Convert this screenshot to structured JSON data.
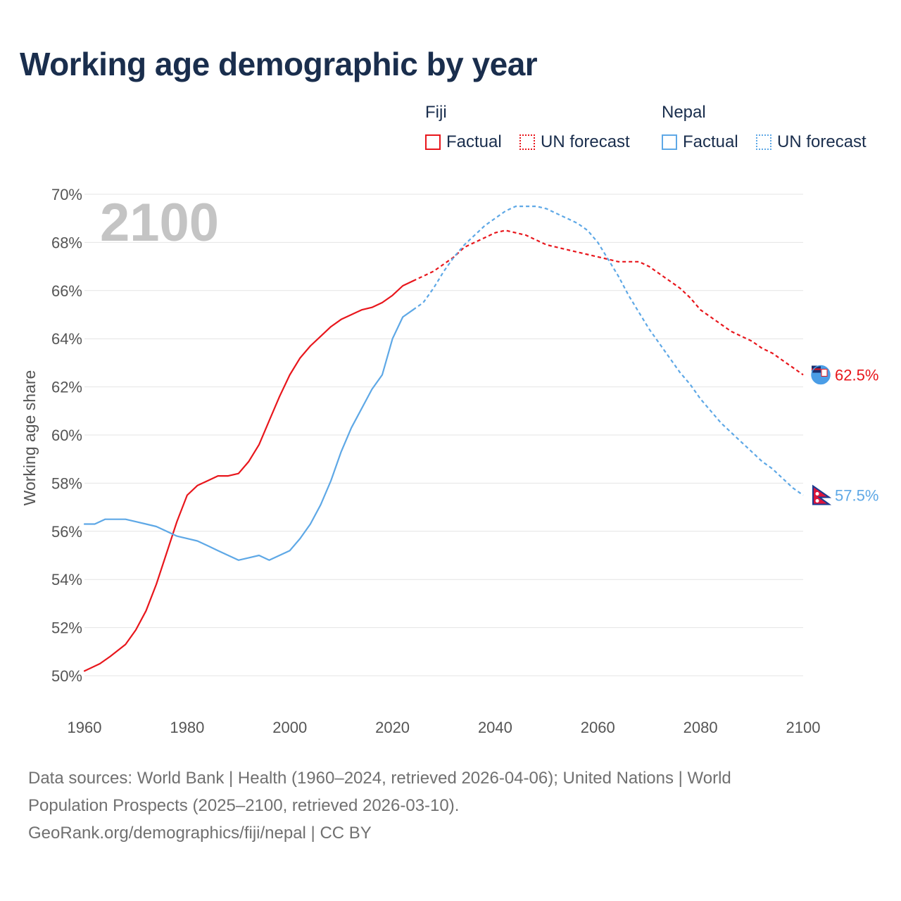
{
  "title": "Working age demographic by year",
  "legend": {
    "groups": [
      {
        "name": "Fiji",
        "factual_label": "Factual",
        "forecast_label": "UN forecast",
        "color": "#e8161c"
      },
      {
        "name": "Nepal",
        "factual_label": "Factual",
        "forecast_label": "UN forecast",
        "color": "#5ea8e6"
      }
    ]
  },
  "footer": {
    "line1": "Data sources: World Bank | Health (1960–2024, retrieved 2026-04-06); United Nations | World",
    "line2": "Population Prospects (2025–2100, retrieved 2026-03-10).",
    "line3": "GeoRank.org/demographics/fiji/nepal | CC BY"
  },
  "chart_data": {
    "type": "line",
    "title": "Working age demographic by year",
    "ylabel": "Working age share",
    "xlabel": "",
    "xlim": [
      1960,
      2100
    ],
    "ylim": [
      50,
      70
    ],
    "x_ticks": [
      1960,
      1980,
      2000,
      2020,
      2040,
      2060,
      2080,
      2100
    ],
    "x_tick_labels": [
      "1960",
      "1980",
      "2000",
      "2020",
      "2040",
      "2060",
      "2080",
      "2100"
    ],
    "y_ticks": [
      50,
      52,
      54,
      56,
      58,
      60,
      62,
      64,
      66,
      68,
      70
    ],
    "y_tick_labels": [
      "50%",
      "52%",
      "54%",
      "56%",
      "58%",
      "60%",
      "62%",
      "64%",
      "66%",
      "68%",
      "70%"
    ],
    "current_year_label": "2100",
    "factual_end_year": 2024,
    "series": [
      {
        "name": "Fiji",
        "color": "#e8161c",
        "end_label": "62.5%",
        "flag_icon": "fiji-flag-icon",
        "points": [
          [
            1960,
            50.2
          ],
          [
            1963,
            50.5
          ],
          [
            1965,
            50.8
          ],
          [
            1968,
            51.3
          ],
          [
            1970,
            51.9
          ],
          [
            1972,
            52.7
          ],
          [
            1974,
            53.8
          ],
          [
            1976,
            55.1
          ],
          [
            1978,
            56.4
          ],
          [
            1980,
            57.5
          ],
          [
            1982,
            57.9
          ],
          [
            1984,
            58.1
          ],
          [
            1986,
            58.3
          ],
          [
            1988,
            58.3
          ],
          [
            1990,
            58.4
          ],
          [
            1992,
            58.9
          ],
          [
            1994,
            59.6
          ],
          [
            1996,
            60.6
          ],
          [
            1998,
            61.6
          ],
          [
            2000,
            62.5
          ],
          [
            2002,
            63.2
          ],
          [
            2004,
            63.7
          ],
          [
            2006,
            64.1
          ],
          [
            2008,
            64.5
          ],
          [
            2010,
            64.8
          ],
          [
            2012,
            65.0
          ],
          [
            2014,
            65.2
          ],
          [
            2016,
            65.3
          ],
          [
            2018,
            65.5
          ],
          [
            2020,
            65.8
          ],
          [
            2022,
            66.2
          ],
          [
            2024,
            66.4
          ],
          [
            2026,
            66.6
          ],
          [
            2028,
            66.8
          ],
          [
            2030,
            67.1
          ],
          [
            2032,
            67.4
          ],
          [
            2034,
            67.8
          ],
          [
            2036,
            68.0
          ],
          [
            2038,
            68.2
          ],
          [
            2040,
            68.4
          ],
          [
            2042,
            68.5
          ],
          [
            2044,
            68.4
          ],
          [
            2046,
            68.3
          ],
          [
            2048,
            68.1
          ],
          [
            2050,
            67.9
          ],
          [
            2052,
            67.8
          ],
          [
            2054,
            67.7
          ],
          [
            2056,
            67.6
          ],
          [
            2058,
            67.5
          ],
          [
            2060,
            67.4
          ],
          [
            2062,
            67.3
          ],
          [
            2064,
            67.2
          ],
          [
            2066,
            67.2
          ],
          [
            2068,
            67.2
          ],
          [
            2070,
            67.0
          ],
          [
            2072,
            66.7
          ],
          [
            2074,
            66.4
          ],
          [
            2076,
            66.1
          ],
          [
            2078,
            65.7
          ],
          [
            2080,
            65.2
          ],
          [
            2082,
            64.9
          ],
          [
            2084,
            64.6
          ],
          [
            2086,
            64.3
          ],
          [
            2088,
            64.1
          ],
          [
            2090,
            63.9
          ],
          [
            2092,
            63.6
          ],
          [
            2094,
            63.4
          ],
          [
            2096,
            63.1
          ],
          [
            2098,
            62.8
          ],
          [
            2100,
            62.5
          ]
        ]
      },
      {
        "name": "Nepal",
        "color": "#5ea8e6",
        "end_label": "57.5%",
        "flag_icon": "nepal-flag-icon",
        "points": [
          [
            1960,
            56.3
          ],
          [
            1962,
            56.3
          ],
          [
            1964,
            56.5
          ],
          [
            1966,
            56.5
          ],
          [
            1968,
            56.5
          ],
          [
            1970,
            56.4
          ],
          [
            1972,
            56.3
          ],
          [
            1974,
            56.2
          ],
          [
            1976,
            56.0
          ],
          [
            1978,
            55.8
          ],
          [
            1980,
            55.7
          ],
          [
            1982,
            55.6
          ],
          [
            1984,
            55.4
          ],
          [
            1986,
            55.2
          ],
          [
            1988,
            55.0
          ],
          [
            1990,
            54.8
          ],
          [
            1992,
            54.9
          ],
          [
            1994,
            55.0
          ],
          [
            1996,
            54.8
          ],
          [
            1998,
            55.0
          ],
          [
            2000,
            55.2
          ],
          [
            2002,
            55.7
          ],
          [
            2004,
            56.3
          ],
          [
            2006,
            57.1
          ],
          [
            2008,
            58.1
          ],
          [
            2010,
            59.3
          ],
          [
            2012,
            60.3
          ],
          [
            2014,
            61.1
          ],
          [
            2016,
            61.9
          ],
          [
            2018,
            62.5
          ],
          [
            2020,
            64.0
          ],
          [
            2022,
            64.9
          ],
          [
            2024,
            65.2
          ],
          [
            2026,
            65.5
          ],
          [
            2028,
            66.1
          ],
          [
            2030,
            66.8
          ],
          [
            2032,
            67.4
          ],
          [
            2034,
            67.9
          ],
          [
            2036,
            68.3
          ],
          [
            2038,
            68.7
          ],
          [
            2040,
            69.0
          ],
          [
            2042,
            69.3
          ],
          [
            2044,
            69.5
          ],
          [
            2046,
            69.5
          ],
          [
            2048,
            69.5
          ],
          [
            2050,
            69.4
          ],
          [
            2052,
            69.2
          ],
          [
            2054,
            69.0
          ],
          [
            2056,
            68.8
          ],
          [
            2058,
            68.5
          ],
          [
            2060,
            68.0
          ],
          [
            2062,
            67.3
          ],
          [
            2064,
            66.6
          ],
          [
            2066,
            65.8
          ],
          [
            2068,
            65.1
          ],
          [
            2070,
            64.4
          ],
          [
            2072,
            63.8
          ],
          [
            2074,
            63.2
          ],
          [
            2076,
            62.6
          ],
          [
            2078,
            62.1
          ],
          [
            2080,
            61.5
          ],
          [
            2082,
            61.0
          ],
          [
            2084,
            60.5
          ],
          [
            2086,
            60.1
          ],
          [
            2088,
            59.7
          ],
          [
            2090,
            59.3
          ],
          [
            2092,
            58.9
          ],
          [
            2094,
            58.6
          ],
          [
            2096,
            58.2
          ],
          [
            2098,
            57.8
          ],
          [
            2100,
            57.5
          ]
        ]
      }
    ]
  }
}
